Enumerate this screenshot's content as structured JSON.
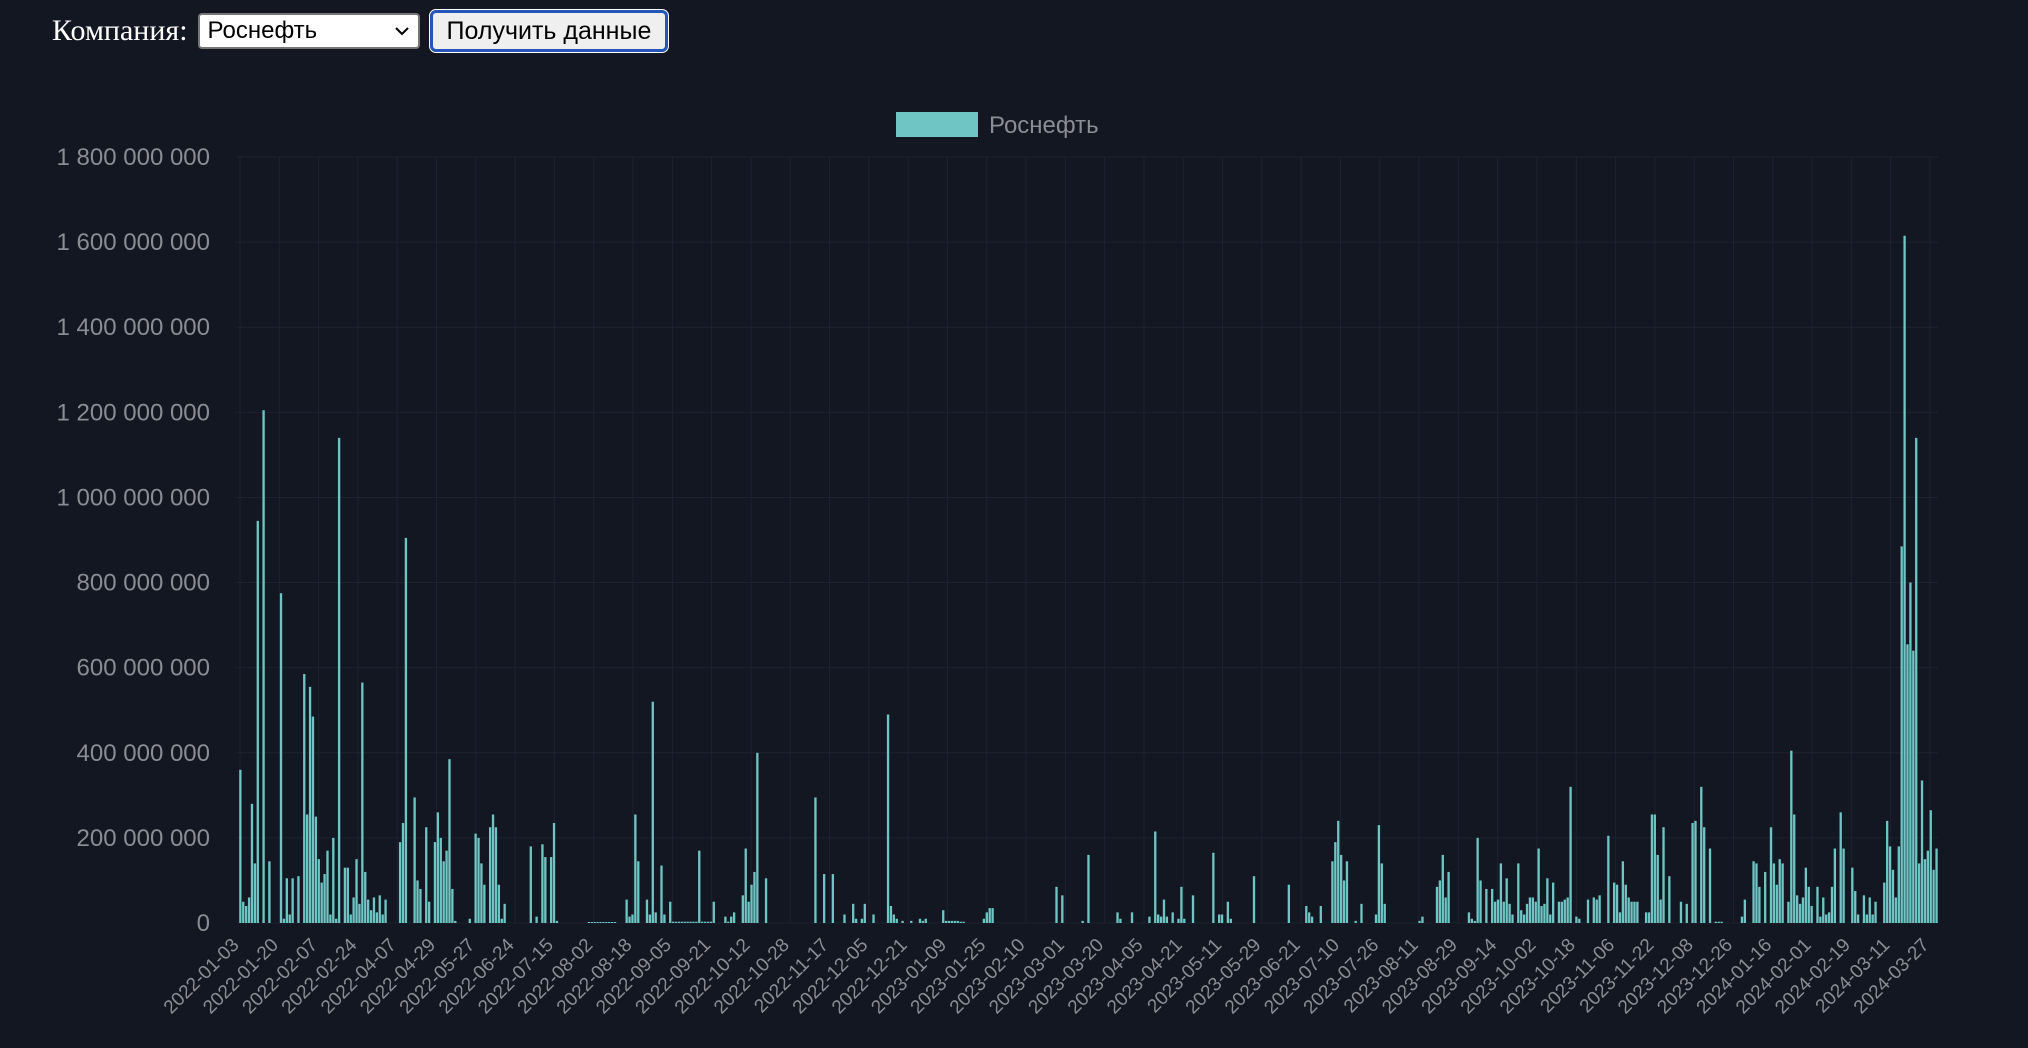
{
  "controls": {
    "company_label": "Компания:",
    "company_selected": "Роснефть",
    "fetch_button": "Получить данные"
  },
  "colors": {
    "background": "#131722",
    "bar": "#6ec5c3",
    "grid": "#1d2230",
    "text": "#8a8d94"
  },
  "chart_data": {
    "type": "bar",
    "title": "",
    "xlabel": "",
    "ylabel": "",
    "legend": {
      "entries": [
        "Роснефть"
      ],
      "placement": "top-center"
    },
    "ylim": [
      0,
      1800000000
    ],
    "yticks": [
      0,
      200000000,
      400000000,
      600000000,
      800000000,
      1000000000,
      1200000000,
      1400000000,
      1600000000,
      1800000000
    ],
    "ytick_labels": [
      "0",
      "200 000 000",
      "400 000 000",
      "600 000 000",
      "800 000 000",
      "1 000 000 000",
      "1 200 000 000",
      "1 400 000 000",
      "1 600 000 000",
      "1 800 000 000"
    ],
    "xtick_labels": [
      "2022-01-03",
      "2022-01-20",
      "2022-02-07",
      "2022-02-24",
      "2022-04-07",
      "2022-04-29",
      "2022-05-27",
      "2022-06-24",
      "2022-07-15",
      "2022-08-02",
      "2022-08-18",
      "2022-09-05",
      "2022-09-21",
      "2022-10-12",
      "2022-10-28",
      "2022-11-17",
      "2022-12-05",
      "2022-12-21",
      "2023-01-09",
      "2023-01-25",
      "2023-02-10",
      "2023-03-01",
      "2023-03-20",
      "2023-04-05",
      "2023-04-21",
      "2023-05-11",
      "2023-05-29",
      "2023-06-21",
      "2023-07-10",
      "2023-07-26",
      "2023-08-11",
      "2023-08-29",
      "2023-09-14",
      "2023-10-02",
      "2023-10-18",
      "2023-11-06",
      "2023-11-22",
      "2023-12-08",
      "2023-12-26",
      "2024-01-16",
      "2024-02-01",
      "2024-02-19",
      "2024-03-11",
      "2024-03-27"
    ],
    "grid": true,
    "series": [
      {
        "name": "Роснефть",
        "values": [
          0,
          360000000,
          50000000,
          40000000,
          60000000,
          280000000,
          140000000,
          945000000,
          0,
          1205000000,
          0,
          145000000,
          0,
          0,
          0,
          775000000,
          10000000,
          105000000,
          20000000,
          105000000,
          0,
          110000000,
          0,
          585000000,
          255000000,
          555000000,
          485000000,
          250000000,
          150000000,
          95000000,
          115000000,
          170000000,
          20000000,
          200000000,
          10000000,
          1140000000,
          0,
          130000000,
          130000000,
          20000000,
          60000000,
          150000000,
          45000000,
          565000000,
          120000000,
          55000000,
          30000000,
          60000000,
          25000000,
          65000000,
          20000000,
          55000000,
          0,
          0,
          0,
          0,
          190000000,
          235000000,
          905000000,
          0,
          0,
          295000000,
          100000000,
          80000000,
          0,
          225000000,
          50000000,
          0,
          190000000,
          260000000,
          200000000,
          145000000,
          170000000,
          385000000,
          80000000,
          5000000,
          0,
          0,
          0,
          0,
          10000000,
          0,
          210000000,
          200000000,
          140000000,
          90000000,
          0,
          225000000,
          255000000,
          225000000,
          90000000,
          10000000,
          45000000,
          0,
          0,
          0,
          0,
          0,
          0,
          0,
          0,
          180000000,
          0,
          15000000,
          0,
          185000000,
          155000000,
          0,
          155000000,
          235000000,
          5000000,
          0,
          0,
          0,
          0,
          0,
          0,
          0,
          0,
          0,
          0,
          2000000,
          2000000,
          2000000,
          2000000,
          2000000,
          2000000,
          2000000,
          2000000,
          2000000,
          2000000,
          0,
          0,
          0,
          55000000,
          15000000,
          20000000,
          255000000,
          145000000,
          0,
          0,
          55000000,
          20000000,
          520000000,
          25000000,
          0,
          135000000,
          20000000,
          0,
          50000000,
          3000000,
          3000000,
          3000000,
          3000000,
          3000000,
          3000000,
          3000000,
          3000000,
          3000000,
          170000000,
          3000000,
          3000000,
          3000000,
          3000000,
          50000000,
          0,
          0,
          0,
          15000000,
          3000000,
          15000000,
          25000000,
          0,
          0,
          65000000,
          175000000,
          50000000,
          90000000,
          120000000,
          400000000,
          0,
          0,
          105000000,
          0,
          0,
          0,
          0,
          0,
          0,
          0,
          0,
          0,
          0,
          0,
          0,
          0,
          0,
          0,
          0,
          295000000,
          0,
          0,
          115000000,
          0,
          0,
          115000000,
          0,
          0,
          0,
          20000000,
          0,
          0,
          45000000,
          10000000,
          0,
          10000000,
          45000000,
          0,
          0,
          20000000,
          0,
          0,
          0,
          0,
          490000000,
          40000000,
          20000000,
          10000000,
          0,
          5000000,
          0,
          0,
          5000000,
          0,
          0,
          10000000,
          5000000,
          10000000,
          0,
          0,
          0,
          0,
          0,
          30000000,
          5000000,
          5000000,
          5000000,
          5000000,
          5000000,
          3000000,
          3000000,
          0,
          0,
          0,
          0,
          0,
          0,
          10000000,
          25000000,
          35000000,
          35000000,
          0,
          0,
          0,
          0,
          0,
          0,
          0,
          0,
          0,
          0,
          0,
          0,
          0,
          0,
          0,
          0,
          0,
          0,
          0,
          0,
          0,
          85000000,
          0,
          65000000,
          0,
          0,
          0,
          0,
          0,
          0,
          5000000,
          0,
          160000000,
          0,
          0,
          0,
          0,
          0,
          0,
          0,
          0,
          0,
          25000000,
          10000000,
          0,
          0,
          0,
          25000000,
          0,
          0,
          0,
          0,
          0,
          15000000,
          0,
          215000000,
          20000000,
          15000000,
          55000000,
          15000000,
          0,
          25000000,
          0,
          10000000,
          85000000,
          10000000,
          0,
          0,
          65000000,
          0,
          0,
          0,
          0,
          0,
          0,
          165000000,
          0,
          20000000,
          20000000,
          0,
          50000000,
          10000000,
          0,
          0,
          0,
          0,
          0,
          0,
          0,
          110000000,
          0,
          0,
          0,
          0,
          0,
          0,
          0,
          0,
          0,
          0,
          0,
          90000000,
          0,
          0,
          0,
          0,
          0,
          40000000,
          25000000,
          15000000,
          0,
          0,
          40000000,
          0,
          0,
          0,
          145000000,
          190000000,
          240000000,
          160000000,
          100000000,
          145000000,
          0,
          0,
          5000000,
          0,
          45000000,
          0,
          0,
          0,
          0,
          20000000,
          230000000,
          140000000,
          45000000,
          0,
          0,
          0,
          0,
          0,
          0,
          0,
          0,
          0,
          0,
          0,
          5000000,
          15000000,
          0,
          0,
          0,
          0,
          85000000,
          100000000,
          160000000,
          60000000,
          120000000,
          0,
          0,
          0,
          0,
          0,
          0,
          25000000,
          10000000,
          5000000,
          200000000,
          100000000,
          0,
          80000000,
          0,
          80000000,
          50000000,
          55000000,
          140000000,
          50000000,
          105000000,
          45000000,
          20000000,
          0,
          140000000,
          30000000,
          20000000,
          45000000,
          60000000,
          60000000,
          50000000,
          175000000,
          40000000,
          45000000,
          105000000,
          20000000,
          95000000,
          0,
          50000000,
          50000000,
          55000000,
          60000000,
          320000000,
          0,
          15000000,
          10000000,
          0,
          0,
          55000000,
          0,
          60000000,
          55000000,
          65000000,
          0,
          0,
          205000000,
          0,
          95000000,
          90000000,
          25000000,
          145000000,
          90000000,
          60000000,
          50000000,
          50000000,
          50000000,
          0,
          0,
          25000000,
          25000000,
          255000000,
          255000000,
          160000000,
          55000000,
          225000000,
          0,
          110000000,
          0,
          0,
          0,
          50000000,
          0,
          45000000,
          0,
          235000000,
          240000000,
          0,
          320000000,
          225000000,
          0,
          175000000,
          0,
          3000000,
          3000000,
          3000000,
          0,
          0,
          0,
          0,
          0,
          0,
          15000000,
          55000000,
          0,
          0,
          145000000,
          140000000,
          85000000,
          0,
          120000000,
          0,
          225000000,
          140000000,
          90000000,
          150000000,
          140000000,
          0,
          50000000,
          405000000,
          255000000,
          65000000,
          45000000,
          60000000,
          130000000,
          85000000,
          40000000,
          0,
          85000000,
          15000000,
          60000000,
          20000000,
          25000000,
          85000000,
          175000000,
          0,
          260000000,
          175000000,
          0,
          0,
          130000000,
          75000000,
          20000000,
          0,
          65000000,
          20000000,
          60000000,
          20000000,
          50000000,
          0,
          0,
          95000000,
          240000000,
          180000000,
          125000000,
          60000000,
          180000000,
          885000000,
          1615000000,
          655000000,
          800000000,
          640000000,
          1140000000,
          140000000,
          335000000,
          150000000,
          170000000,
          265000000,
          125000000,
          175000000
        ]
      }
    ]
  }
}
